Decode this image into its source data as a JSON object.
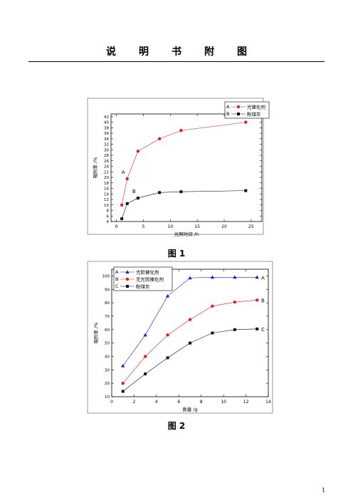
{
  "header": {
    "chars": [
      "说",
      "明",
      "书",
      "附",
      "图"
    ]
  },
  "page_number": "1",
  "figures": [
    {
      "caption": "图 1"
    },
    {
      "caption": "图 2"
    }
  ],
  "chart_data": [
    {
      "type": "line",
      "title": "",
      "xlabel": "光照时间 /h",
      "ylabel": "吸附率 /%",
      "xlim": [
        -1,
        27
      ],
      "ylim": [
        4,
        43
      ],
      "xticks": [
        0,
        5,
        10,
        15,
        20,
        25
      ],
      "yticks": [
        4,
        6,
        8,
        10,
        12,
        14,
        16,
        18,
        20,
        22,
        24,
        26,
        28,
        30,
        32,
        34,
        36,
        38,
        40,
        42
      ],
      "grid": false,
      "legend": "top-right",
      "series": [
        {
          "name": "光催化剂",
          "letter": "A",
          "legend_prefix": "A",
          "color": "#e02020",
          "marker": "circle",
          "x": [
            1,
            2,
            4,
            8,
            12,
            24
          ],
          "values": [
            10,
            19.5,
            29.5,
            34,
            37,
            40
          ],
          "label": "A"
        },
        {
          "name": "粉煤灰",
          "letter": "B",
          "legend_prefix": "B",
          "color": "#111111",
          "marker": "square",
          "x": [
            1,
            2,
            4,
            8,
            12,
            24
          ],
          "values": [
            5,
            10.5,
            12.5,
            14.5,
            14.8,
            15.2
          ],
          "label": "B"
        }
      ]
    },
    {
      "type": "line",
      "title": "",
      "xlabel": "质量 /g",
      "ylabel": "吸附率 /%",
      "xlim": [
        0,
        14
      ],
      "ylim": [
        10,
        105
      ],
      "xticks": [
        0,
        2,
        4,
        6,
        8,
        10,
        12,
        14
      ],
      "yticks": [
        10,
        20,
        30,
        40,
        50,
        60,
        70,
        80,
        90,
        100
      ],
      "grid": false,
      "legend": "top-left",
      "series": [
        {
          "name": "光照催化剂",
          "letter": "A",
          "legend_prefix": "A",
          "color": "#1a1ad6",
          "marker": "triangle",
          "x": [
            1,
            3,
            5,
            7,
            9,
            11,
            13
          ],
          "values": [
            33,
            56,
            85,
            98.5,
            99,
            99,
            99
          ],
          "label": "A"
        },
        {
          "name": "无光照催化剂",
          "letter": "B",
          "legend_prefix": "B",
          "color": "#e02020",
          "marker": "circle",
          "x": [
            1,
            3,
            5,
            7,
            9,
            11,
            13
          ],
          "values": [
            20,
            40,
            56,
            67.5,
            77.5,
            80.5,
            82
          ],
          "label": "B"
        },
        {
          "name": "粉煤灰",
          "letter": "C",
          "legend_prefix": "C",
          "color": "#111111",
          "marker": "square",
          "x": [
            1,
            3,
            5,
            7,
            9,
            11,
            13
          ],
          "values": [
            14,
            27,
            39,
            50,
            57.5,
            60,
            60.5
          ],
          "label": "C"
        }
      ]
    }
  ]
}
